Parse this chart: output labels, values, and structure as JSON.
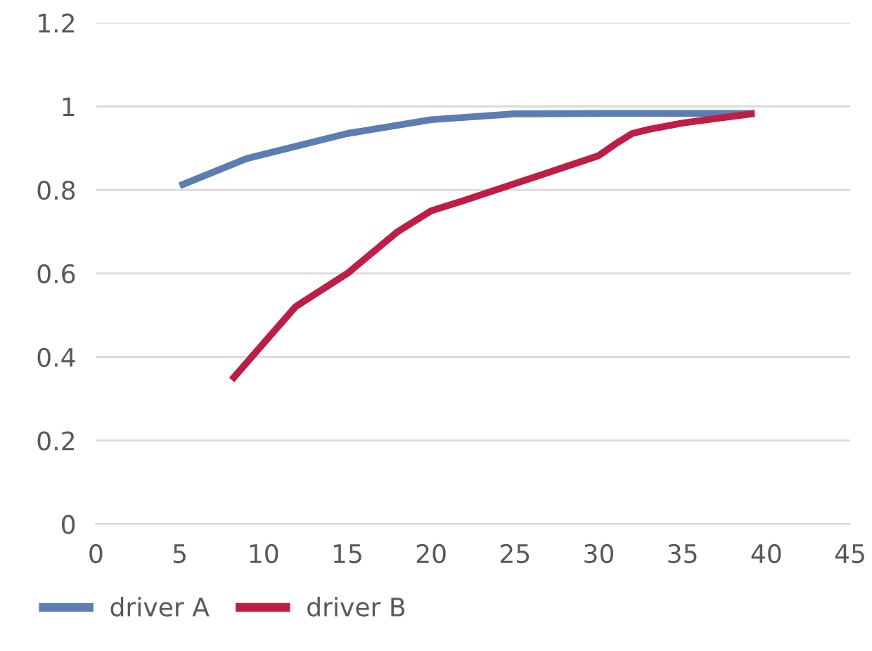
{
  "chart_data": {
    "type": "line",
    "xlim": [
      0,
      45
    ],
    "xticks": [
      0,
      5,
      10,
      15,
      20,
      25,
      30,
      35,
      40,
      45
    ],
    "ylim": [
      0,
      1.2
    ],
    "yticks": [
      0,
      {
        "value": 0.2,
        "label": "0.2"
      },
      {
        "value": 0.4,
        "label": "0.4"
      },
      {
        "value": 0.6,
        "label": "0.6"
      },
      {
        "value": 0.8,
        "label": "0.8"
      },
      1,
      {
        "value": 1.2,
        "label": "1.2"
      }
    ],
    "grid": "y",
    "legend": "bottom",
    "marker": "none",
    "line_style": "solid",
    "series": [
      {
        "name": "driver A",
        "color": "#5b7db1",
        "x": [
          5,
          9,
          15,
          20,
          25,
          30,
          39.3
        ],
        "values": [
          0.81,
          0.875,
          0.935,
          0.968,
          0.982,
          0.983,
          0.983
        ]
      },
      {
        "name": "driver B",
        "color": "#be1e46",
        "x": [
          8.1,
          9.4,
          11.9,
          15,
          18,
          20,
          22,
          25,
          28,
          30,
          31,
          32,
          33,
          35,
          39.3
        ],
        "values": [
          0.345,
          0.405,
          0.52,
          0.6,
          0.7,
          0.75,
          0.775,
          0.815,
          0.855,
          0.882,
          0.91,
          0.935,
          0.945,
          0.96,
          0.983
        ]
      }
    ]
  }
}
